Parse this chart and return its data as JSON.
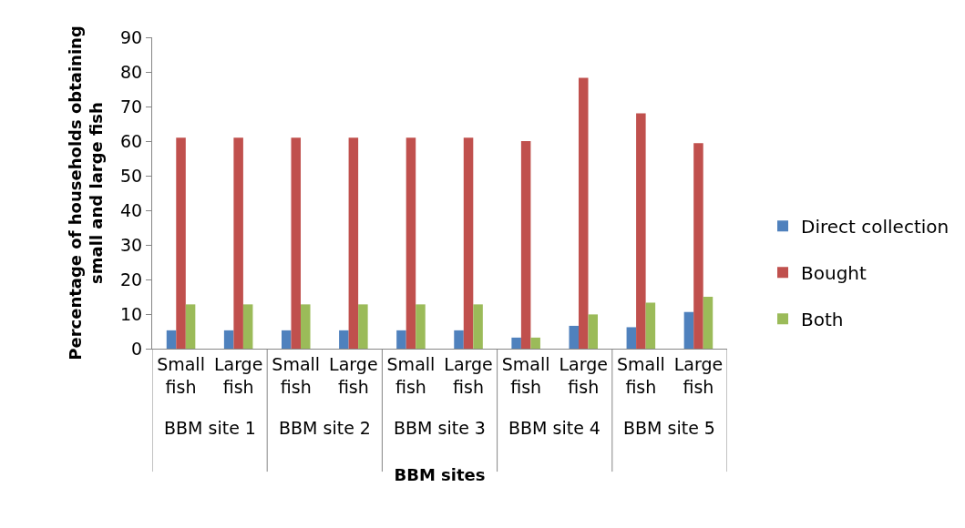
{
  "chart_data": {
    "type": "bar",
    "xlabel": "BBM sites",
    "ylabel": "Percentage of households obtaining small and large fish",
    "categories": [
      "Small fish",
      "Large fish",
      "Small fish",
      "Large fish",
      "Small fish",
      "Large fish",
      "Small fish",
      "Large fish",
      "Small fish",
      "Large fish"
    ],
    "annotations": [
      "BBM site 1",
      "BBM site 2",
      "BBM site 3",
      "BBM site 4",
      "BBM site 5"
    ],
    "series": [
      {
        "name": "Direct collection",
        "color": "#4f81bd",
        "values": [
          5.3,
          5.3,
          5.3,
          5.3,
          5.3,
          5.3,
          3.2,
          6.6,
          6.2,
          10.6
        ]
      },
      {
        "name": "Bought",
        "color": "#c0504d",
        "values": [
          61,
          61,
          61,
          61,
          61,
          61,
          60,
          78.3,
          68,
          59.4
        ]
      },
      {
        "name": "Both",
        "color": "#9bbb59",
        "values": [
          12.8,
          12.8,
          12.8,
          12.8,
          12.8,
          12.8,
          3.2,
          9.9,
          13.3,
          15
        ]
      }
    ],
    "ylim": [
      0,
      90
    ],
    "yticks": [
      0,
      10,
      20,
      30,
      40,
      50,
      60,
      70,
      80,
      90
    ],
    "legend": "right"
  }
}
